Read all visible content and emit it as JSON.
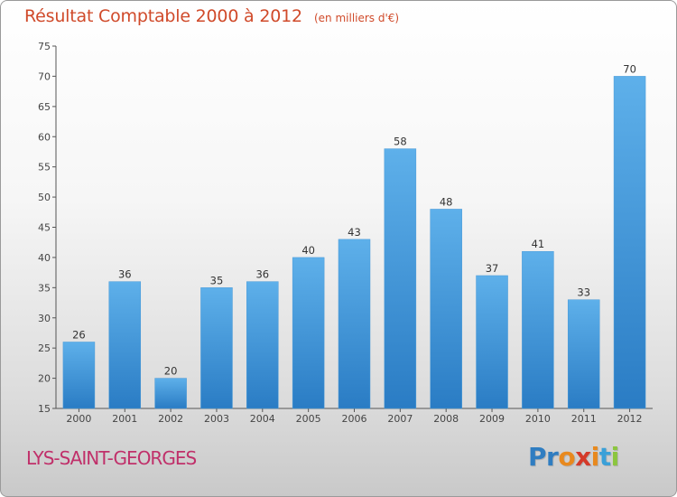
{
  "chart_data": {
    "type": "bar",
    "title": "Résultat Comptable 2000 à 2012",
    "subtitle": "(en milliers d'€)",
    "categories": [
      "2000",
      "2001",
      "2002",
      "2003",
      "2004",
      "2005",
      "2006",
      "2007",
      "2008",
      "2009",
      "2010",
      "2011",
      "2012"
    ],
    "values": [
      26,
      36,
      20,
      35,
      36,
      40,
      43,
      58,
      48,
      37,
      41,
      33,
      70
    ],
    "xlabel": "",
    "ylabel": "",
    "ylim": [
      15,
      75
    ],
    "yticks": [
      15,
      20,
      25,
      30,
      35,
      40,
      45,
      50,
      55,
      60,
      65,
      70,
      75
    ],
    "grid": false,
    "legend": "none"
  },
  "footer": {
    "city": "LYS-SAINT-GEORGES",
    "logo_letters": [
      "P",
      "r",
      "o",
      "x",
      "i",
      "t",
      "i"
    ]
  },
  "colors": {
    "title": "#d04a2a",
    "city": "#c0306a",
    "bar_top": "#5eb0ea",
    "bar_bottom": "#2a7cc4",
    "logo": [
      "#2f7dc1",
      "#2f7dc1",
      "#e8891e",
      "#d43a2a",
      "#e8891e",
      "#3aa0d8",
      "#8cc63f"
    ]
  }
}
